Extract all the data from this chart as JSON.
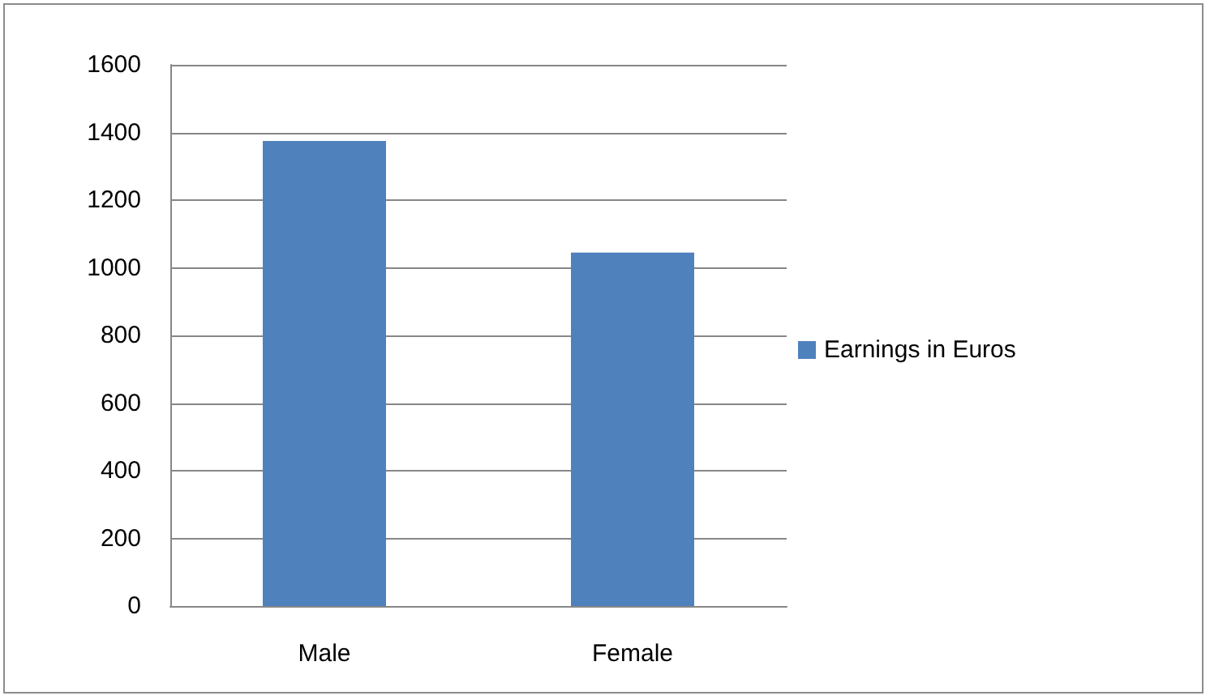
{
  "chart_data": {
    "type": "bar",
    "categories": [
      "Male",
      "Female"
    ],
    "series": [
      {
        "name": "Earnings in Euros",
        "color": "#4f81bd",
        "values": [
          1375,
          1045
        ]
      }
    ],
    "ylim": [
      0,
      1600
    ],
    "yticks": [
      0,
      200,
      400,
      600,
      800,
      1000,
      1200,
      1400,
      1600
    ],
    "grid": "y",
    "legend": "right"
  }
}
